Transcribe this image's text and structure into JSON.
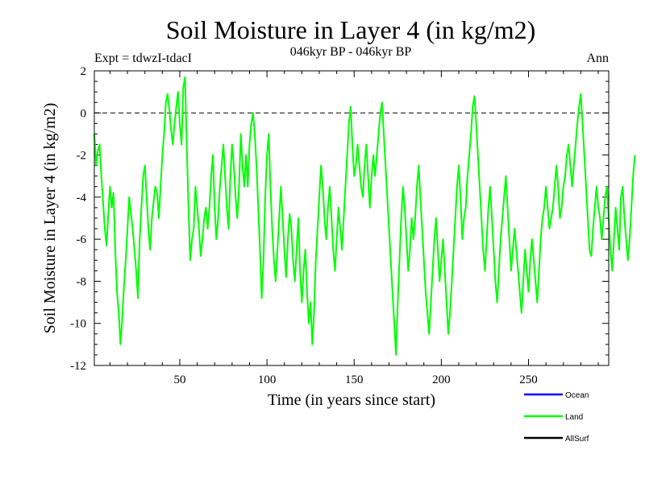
{
  "chart_data": {
    "type": "line",
    "title": "Soil Moisture in Layer 4 (in kg/m2)",
    "subtitle": "046kyr BP - 046kyr BP",
    "expt_label": "Expt = tdwzI-tdacI",
    "season_label": "Ann",
    "xlabel": "Time (in years since start)",
    "ylabel": "Soil Moisture in Layer 4 (in kg/m2)",
    "xlim": [
      1,
      296
    ],
    "ylim": [
      -12,
      2
    ],
    "xticks_major": [
      50,
      100,
      150,
      200,
      250
    ],
    "xtick_labels": [
      "50",
      "100",
      "150",
      "200",
      "250"
    ],
    "yticks_major": [
      -12,
      -10,
      -8,
      -6,
      -4,
      -2,
      0,
      2
    ],
    "ytick_labels": [
      "-12",
      "-10",
      "-8",
      "-6",
      "-4",
      "-2",
      "0",
      "2"
    ],
    "zero_line": 0,
    "legend": [
      {
        "name": "Ocean",
        "color": "#0000ff"
      },
      {
        "name": "Land",
        "color": "#00ff00"
      },
      {
        "name": "AllSurf",
        "color": "#000000"
      }
    ],
    "series": [
      {
        "name": "Land",
        "color": "#00ff00",
        "x_start": 1,
        "x_step": 1,
        "values": [
          -1.0,
          -2.5,
          -1.8,
          -1.5,
          -3.0,
          -4.2,
          -5.5,
          -6.3,
          -4.8,
          -3.5,
          -4.5,
          -3.8,
          -6.5,
          -8.5,
          -9.5,
          -11.0,
          -9.8,
          -8.2,
          -7.0,
          -5.5,
          -4.0,
          -4.8,
          -5.5,
          -6.5,
          -7.5,
          -8.8,
          -6.0,
          -4.5,
          -3.0,
          -2.5,
          -4.0,
          -5.5,
          -6.5,
          -5.0,
          -4.2,
          -3.5,
          -3.8,
          -5.0,
          -3.5,
          -2.0,
          -1.0,
          0.5,
          0.9,
          0.2,
          -0.8,
          -1.5,
          -0.5,
          0.3,
          1.0,
          -0.5,
          -1.5,
          1.2,
          1.7,
          -1.5,
          -4.5,
          -7.0,
          -6.0,
          -5.5,
          -3.5,
          -4.5,
          -5.5,
          -6.8,
          -6.0,
          -5.0,
          -4.5,
          -5.5,
          -4.5,
          -3.0,
          -2.0,
          -4.5,
          -6.0,
          -5.0,
          -3.5,
          -2.5,
          -1.5,
          -3.0,
          -4.5,
          -5.5,
          -3.0,
          -1.5,
          -2.5,
          -4.0,
          -5.0,
          -3.5,
          -1.0,
          -2.5,
          -3.5,
          -2.0,
          -3.5,
          -1.5,
          -0.5,
          0.0,
          -1.0,
          -2.5,
          -4.5,
          -6.5,
          -8.8,
          -7.0,
          -4.0,
          -2.0,
          -1.0,
          -3.5,
          -5.5,
          -7.0,
          -8.0,
          -6.5,
          -5.0,
          -3.5,
          -5.0,
          -6.5,
          -7.8,
          -6.0,
          -4.8,
          -5.5,
          -7.0,
          -8.0,
          -6.5,
          -5.0,
          -7.5,
          -9.0,
          -7.5,
          -6.5,
          -8.5,
          -10.0,
          -9.0,
          -11.0,
          -9.5,
          -7.0,
          -5.5,
          -4.0,
          -2.5,
          -3.5,
          -5.0,
          -6.0,
          -4.5,
          -3.5,
          -5.0,
          -6.5,
          -7.5,
          -6.0,
          -4.5,
          -5.5,
          -6.5,
          -5.0,
          -3.5,
          -2.0,
          -0.5,
          0.3,
          -1.5,
          -3.0,
          -2.5,
          -1.5,
          -2.5,
          -3.5,
          -4.0,
          -2.5,
          -1.5,
          -3.0,
          -4.5,
          -3.0,
          -2.0,
          -3.0,
          -2.0,
          -1.0,
          0.0,
          0.5,
          -1.0,
          -2.5,
          -4.0,
          -5.5,
          -7.0,
          -8.5,
          -10.0,
          -11.5,
          -9.0,
          -7.0,
          -5.0,
          -3.5,
          -4.5,
          -6.0,
          -7.5,
          -6.5,
          -5.0,
          -6.0,
          -5.0,
          -3.5,
          -2.5,
          -4.0,
          -5.5,
          -7.0,
          -8.5,
          -9.5,
          -10.5,
          -9.0,
          -7.5,
          -6.0,
          -5.0,
          -6.5,
          -8.0,
          -7.0,
          -6.0,
          -7.5,
          -9.0,
          -10.5,
          -9.5,
          -8.0,
          -6.5,
          -5.0,
          -3.5,
          -2.5,
          -4.0,
          -6.0,
          -5.0,
          -4.5,
          -3.0,
          -2.0,
          -1.0,
          0.3,
          0.8,
          -0.5,
          -2.0,
          -3.5,
          -5.0,
          -6.5,
          -7.5,
          -6.0,
          -4.5,
          -3.5,
          -5.0,
          -6.5,
          -8.0,
          -9.0,
          -7.5,
          -6.0,
          -5.0,
          -4.0,
          -3.0,
          -4.5,
          -6.0,
          -7.5,
          -6.5,
          -5.5,
          -6.5,
          -7.5,
          -8.5,
          -9.5,
          -8.0,
          -6.5,
          -7.5,
          -8.5,
          -7.0,
          -6.0,
          -7.0,
          -8.0,
          -9.0,
          -7.5,
          -6.0,
          -5.0,
          -4.5,
          -3.5,
          -4.5,
          -5.5,
          -5.0,
          -4.5,
          -3.5,
          -2.5,
          -3.5,
          -5.0,
          -4.5,
          -3.5,
          -3.0,
          -2.0,
          -1.5,
          -2.5,
          -3.5,
          -2.5,
          -1.5,
          -0.5,
          0.3,
          0.9,
          -0.5,
          -2.0,
          -3.5,
          -5.0,
          -6.5,
          -6.8,
          -5.5,
          -4.5,
          -3.5,
          -4.5,
          -5.0,
          -6.0,
          -5.0,
          -4.0,
          -3.5,
          -5.0,
          -6.5,
          -7.5,
          -6.0,
          -4.5,
          -5.5,
          -6.5,
          -4.0,
          -3.5,
          -5.0,
          -6.0,
          -7.0,
          -6.0,
          -4.5,
          -3.0,
          -2.0
        ]
      }
    ]
  }
}
